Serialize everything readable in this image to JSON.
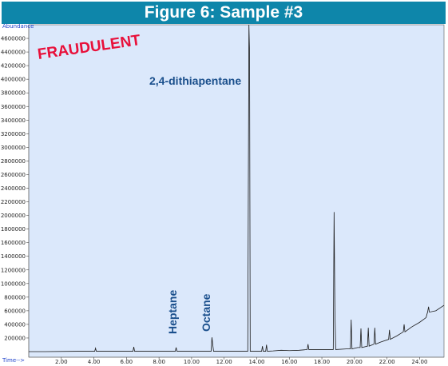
{
  "title": "Figure 6: Sample #3",
  "stamp": "FRAUDULENT",
  "chart_data": {
    "type": "line",
    "xlabel": "Time-->",
    "ylabel": "Abundance",
    "xlim": [
      0.0,
      25.5
    ],
    "ylim": [
      0,
      4800000
    ],
    "x_ticks": [
      "2.00",
      "4.00",
      "6.00",
      "8.00",
      "10.00",
      "12.00",
      "14.00",
      "16.00",
      "18.00",
      "20.00",
      "22.00",
      "24.00"
    ],
    "y_ticks": [
      "200000",
      "400000",
      "600000",
      "800000",
      "1000000",
      "1200000",
      "1400000",
      "1600000",
      "1800000",
      "2000000",
      "2200000",
      "2400000",
      "2600000",
      "2800000",
      "3000000",
      "3200000",
      "3400000",
      "3600000",
      "3800000",
      "4000000",
      "4200000",
      "4400000",
      "4600000"
    ],
    "grid": false,
    "series": [
      {
        "x": [
          0.0,
          1.0,
          3.0,
          4.05,
          4.1,
          4.15,
          6.0,
          6.4,
          6.45,
          6.5,
          8.0,
          9.0,
          9.05,
          9.1,
          10.5,
          11.2,
          11.25,
          11.3,
          11.35,
          12.5,
          13.45,
          13.52,
          13.56,
          13.6,
          14.3,
          14.35,
          14.4,
          14.55,
          14.6,
          14.65,
          15.0,
          15.5,
          16.0,
          16.6,
          17.1,
          17.15,
          17.2,
          18.0,
          18.7,
          18.75,
          18.8,
          18.85,
          19.5,
          19.75,
          19.8,
          19.85,
          20.2,
          20.35,
          20.4,
          20.45,
          20.8,
          20.85,
          20.9,
          21.2,
          21.25,
          21.3,
          21.6,
          22.1,
          22.15,
          22.2,
          22.6,
          23.0,
          23.05,
          23.1,
          23.5,
          24.0,
          24.4,
          24.5,
          24.55,
          24.6,
          25.0,
          25.5
        ],
        "y": [
          0,
          0,
          5000,
          5000,
          50000,
          5000,
          5000,
          5000,
          70000,
          5000,
          5000,
          5000,
          60000,
          5000,
          5000,
          5000,
          210000,
          100000,
          5000,
          5000,
          5000,
          4800000,
          4400000,
          5000,
          5000,
          80000,
          5000,
          5000,
          100000,
          5000,
          10000,
          20000,
          15000,
          20000,
          30000,
          110000,
          30000,
          30000,
          30000,
          2050000,
          600000,
          30000,
          40000,
          40000,
          470000,
          40000,
          60000,
          60000,
          340000,
          60000,
          80000,
          350000,
          80000,
          110000,
          350000,
          110000,
          140000,
          180000,
          320000,
          180000,
          230000,
          290000,
          400000,
          290000,
          360000,
          430000,
          500000,
          590000,
          660000,
          580000,
          600000,
          680000
        ]
      }
    ],
    "annotations": [
      {
        "text": "2,4-dithiapentane",
        "x": 13.5
      },
      {
        "text": "Heptane",
        "x": 9.0
      },
      {
        "text": "Octane",
        "x": 11.2
      }
    ]
  }
}
